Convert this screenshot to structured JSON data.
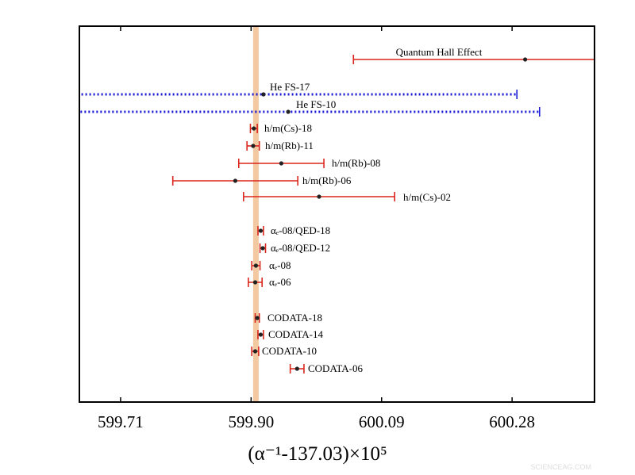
{
  "chart_data": {
    "type": "errorbar",
    "x_label": "(α⁻¹-137.03)×10⁵",
    "categories": [
      "Quantum Hall Effect",
      "He FS-17",
      "He FS-10",
      "h/m(Cs)-18",
      "h/m(Rb)-11",
      "h/m(Rb)-08",
      "h/m(Rb)-06",
      "h/m(Cs)-02",
      "αₑ-08/QED-18",
      "αₑ-08/QED-12",
      "αₑ-08",
      "αₑ-06",
      "CODATA-18",
      "CODATA-14",
      "CODATA-10",
      "CODATA-06"
    ],
    "values": [
      600.299,
      599.918,
      599.954,
      599.904,
      599.903,
      599.944,
      599.877,
      599.999,
      599.914,
      599.917,
      599.907,
      599.906,
      599.909,
      599.914,
      599.906,
      599.967
    ],
    "errors": [
      0.25,
      0.369,
      0.366,
      0.005,
      0.009,
      0.062,
      0.091,
      0.11,
      0.004,
      0.004,
      0.006,
      0.01,
      0.003,
      0.004,
      0.005,
      0.01
    ],
    "colors": [
      "#d9261c",
      "#1a1ad6",
      "#1a1ad6",
      "#d9261c",
      "#d9261c",
      "#d9261c",
      "#d9261c",
      "#d9261c",
      "#d9261c",
      "#d9261c",
      "#d9261c",
      "#d9261c",
      "#d9261c",
      "#d9261c",
      "#d9261c",
      "#d9261c"
    ],
    "styles": [
      "solid",
      "dotted",
      "dotted",
      "solid",
      "solid",
      "solid",
      "solid",
      "solid",
      "solid",
      "solid",
      "solid",
      "solid",
      "solid",
      "solid",
      "solid",
      "solid"
    ],
    "reference_value": 599.907,
    "reference_color": "#f2c9a1",
    "xlim": [
      599.65,
      600.4
    ],
    "xticks": [
      {
        "value": 599.71,
        "label": "599.71"
      },
      {
        "value": 599.9,
        "label": "599.90"
      },
      {
        "value": 600.09,
        "label": "600.09"
      },
      {
        "value": 600.28,
        "label": "600.28"
      }
    ],
    "watermark": "SCIENCEAG.COM"
  }
}
